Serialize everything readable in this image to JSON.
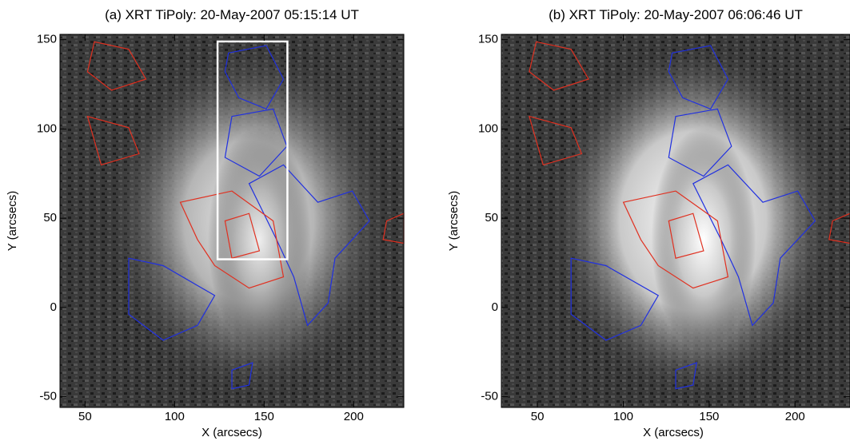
{
  "chart_data": [
    {
      "type": "image",
      "title": "(a) XRT TiPoly: 20-May-2007 05:15:14 UT",
      "x_label": "X (arcsecs)",
      "y_label": "Y (arcsecs)",
      "xlim": [
        36,
        228
      ],
      "ylim": [
        -56,
        153
      ],
      "xticks": [
        50,
        100,
        150,
        200
      ],
      "yticks": [
        -50,
        0,
        50,
        100,
        150
      ],
      "box": {
        "x": [
          124,
          163
        ],
        "y": [
          27,
          149
        ]
      }
    },
    {
      "type": "image",
      "title": "(b) XRT TiPoly: 20-May-2007 06:06:46 UT",
      "x_label": "X (arcsecs)",
      "y_label": "Y (arcsecs)",
      "xlim": [
        29,
        232
      ],
      "ylim": [
        -56,
        153
      ],
      "xticks": [
        50,
        100,
        150,
        200
      ],
      "yticks": [
        -50,
        0,
        50,
        100,
        150
      ]
    }
  ]
}
